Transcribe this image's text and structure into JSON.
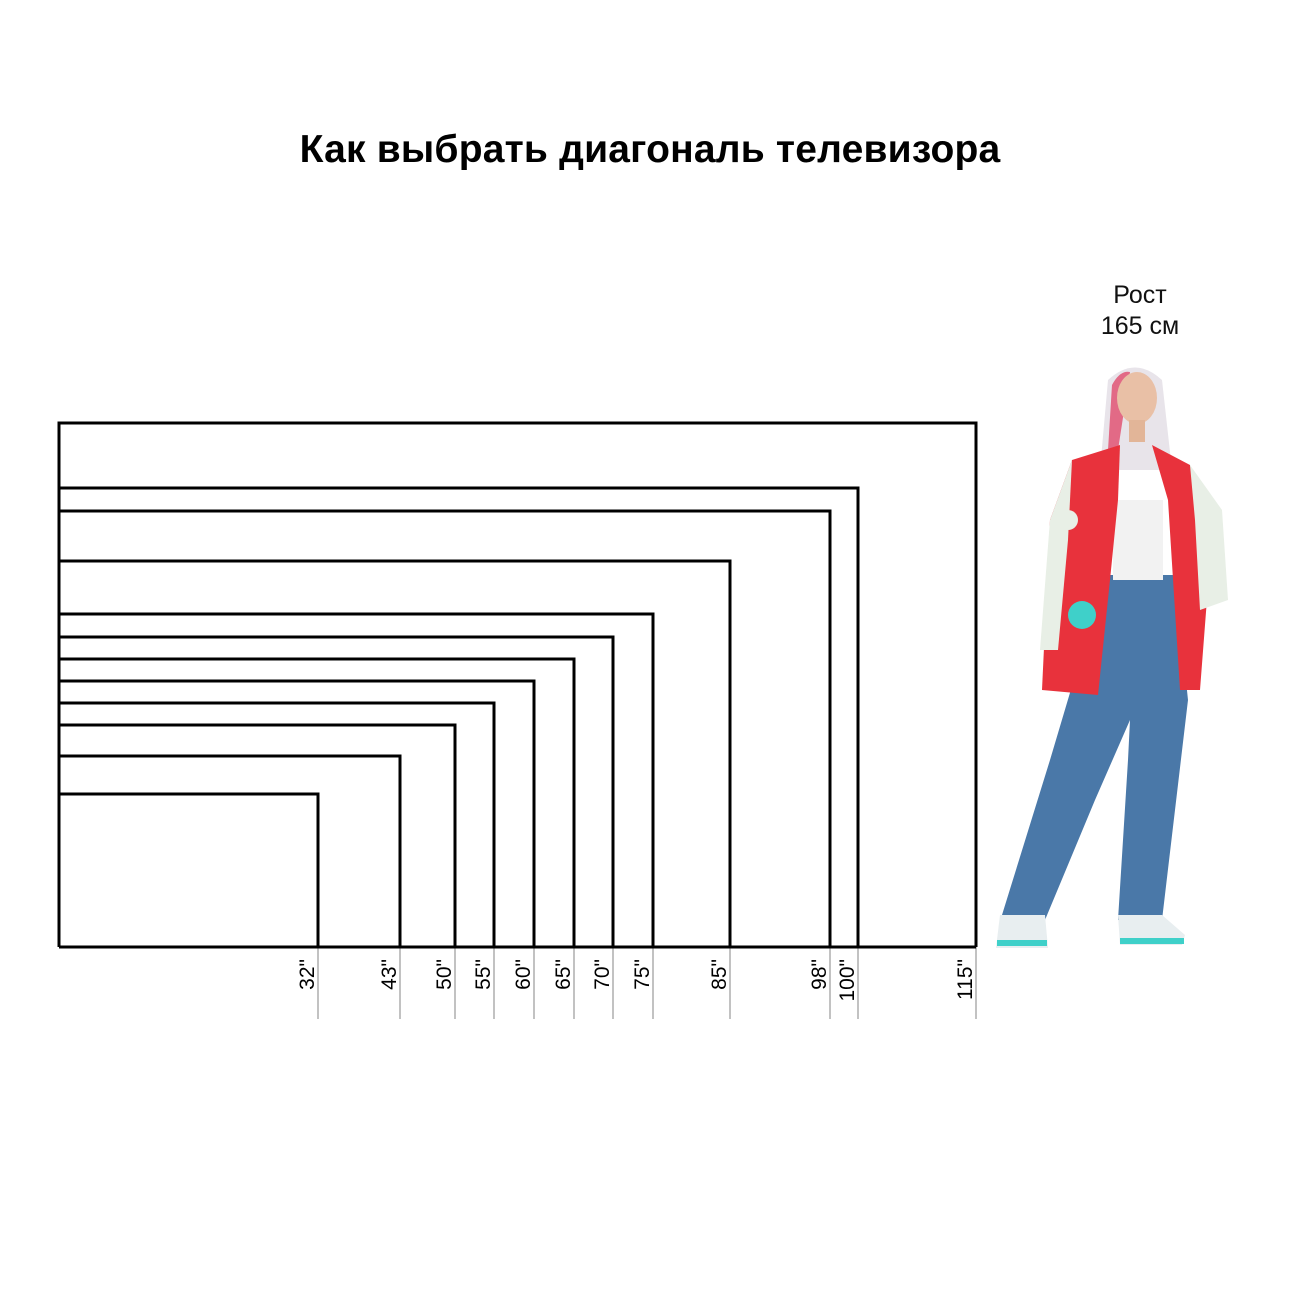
{
  "title": "Как выбрать диагональ телевизора",
  "person": {
    "height_line1": "Рост",
    "height_line2": "165 см"
  },
  "diagonals": [
    {
      "inches": 115,
      "label": "115\""
    },
    {
      "inches": 100,
      "label": "100\""
    },
    {
      "inches": 98,
      "label": "98\""
    },
    {
      "inches": 85,
      "label": "85\""
    },
    {
      "inches": 75,
      "label": "75\""
    },
    {
      "inches": 70,
      "label": "70\""
    },
    {
      "inches": 65,
      "label": "65\""
    },
    {
      "inches": 60,
      "label": "60\""
    },
    {
      "inches": 55,
      "label": "55\""
    },
    {
      "inches": 50,
      "label": "50\""
    },
    {
      "inches": 43,
      "label": "43\""
    },
    {
      "inches": 32,
      "label": "32\""
    }
  ],
  "colors": {
    "outline": "#000000",
    "tick": "#9a9a9a",
    "jacket": "#e8323c",
    "jeans": "#4a78a8",
    "accent": "#3fd0c9"
  }
}
